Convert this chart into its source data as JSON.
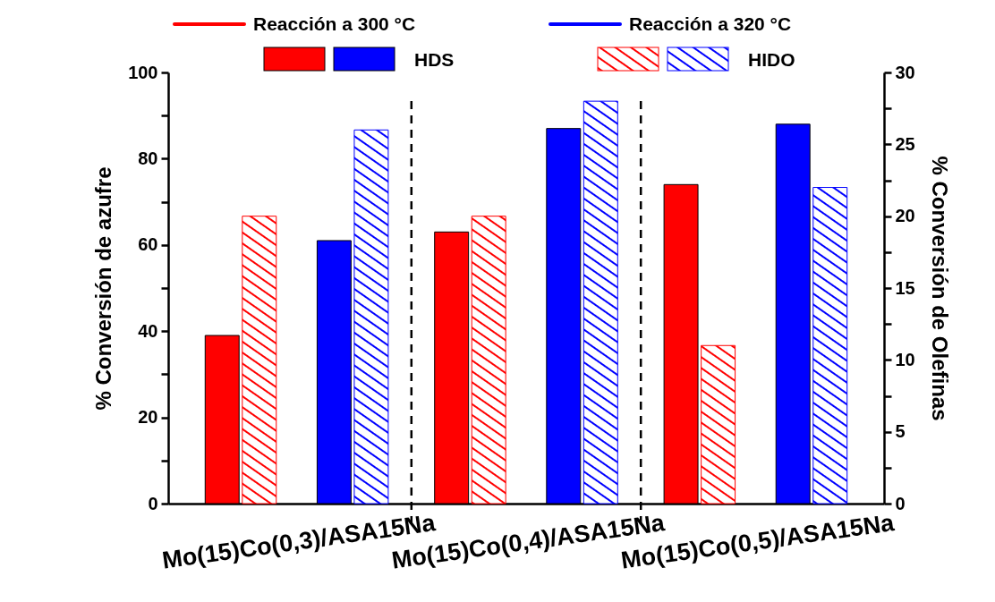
{
  "chart_data": {
    "type": "bar",
    "ylabel": "% Conversión de azufre",
    "y2label": "% Conversión de Olefinas",
    "categories": [
      "Mo(15)Co(0,3)/ASA15Na",
      "Mo(15)Co(0,4)/ASA15Na",
      "Mo(15)Co(0,5)/ASA15Na"
    ],
    "series": [
      {
        "color": "#ff0000",
        "values": [
          39,
          63,
          74
        ]
      },
      {
        "color": "#ff0000",
        "axis": "y2",
        "values": [
          20,
          20,
          11
        ]
      },
      {
        "name": "HDS",
        "color": "#0000ff",
        "values": [
          61,
          87,
          88
        ]
      },
      {
        "name": "HIDO",
        "color": "#0000ff",
        "axis": "y2",
        "values": [
          26,
          28,
          22
        ]
      }
    ],
    "ylim": [
      0,
      100
    ],
    "yticks": [
      0,
      {
        "value": 10,
        "label": null
      },
      20,
      {
        "value": 30,
        "label": null
      },
      40,
      {
        "value": 50,
        "label": null
      },
      60,
      {
        "value": 70,
        "label": null
      },
      80,
      {
        "value": 90,
        "label": null
      },
      100
    ],
    "y2lim": [
      0,
      30
    ],
    "y2ticks": [
      0,
      {
        "value": 2.5,
        "label": null
      },
      5,
      {
        "value": 7.5,
        "label": null
      },
      10,
      {
        "value": 12.5,
        "label": null
      },
      15,
      {
        "value": 17.5,
        "label": null
      },
      20,
      {
        "value": 22.5,
        "label": null
      },
      25,
      {
        "value": 27.5,
        "label": null
      },
      30
    ],
    "annotations": [
      "Reacción a 300 °C",
      "Reacción a 320 °C"
    ],
    "legend": "top",
    "grid": false
  }
}
